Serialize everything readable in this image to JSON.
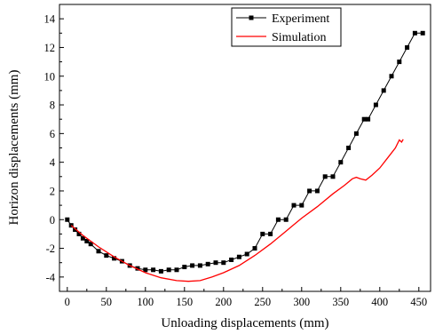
{
  "chart_data": {
    "type": "line",
    "title": "",
    "xlabel": "Unloading displacements (mm)",
    "ylabel": "Horizon displacements (mm)",
    "xlim": [
      -10,
      465
    ],
    "ylim": [
      -5,
      15
    ],
    "xticks": [
      0,
      50,
      100,
      150,
      200,
      250,
      300,
      350,
      400,
      450
    ],
    "yticks": [
      -4,
      -2,
      0,
      2,
      4,
      6,
      8,
      10,
      12,
      14
    ],
    "grid": false,
    "legend_position": "top-center",
    "series": [
      {
        "name": "Experiment",
        "color": "#000000",
        "marker": "square",
        "points": [
          [
            0,
            0.0
          ],
          [
            5,
            -0.4
          ],
          [
            10,
            -0.7
          ],
          [
            15,
            -1.0
          ],
          [
            20,
            -1.3
          ],
          [
            25,
            -1.5
          ],
          [
            30,
            -1.7
          ],
          [
            40,
            -2.2
          ],
          [
            50,
            -2.5
          ],
          [
            60,
            -2.7
          ],
          [
            70,
            -2.9
          ],
          [
            80,
            -3.2
          ],
          [
            90,
            -3.4
          ],
          [
            100,
            -3.5
          ],
          [
            110,
            -3.5
          ],
          [
            120,
            -3.6
          ],
          [
            130,
            -3.5
          ],
          [
            140,
            -3.5
          ],
          [
            150,
            -3.3
          ],
          [
            160,
            -3.2
          ],
          [
            170,
            -3.2
          ],
          [
            180,
            -3.1
          ],
          [
            190,
            -3.0
          ],
          [
            200,
            -3.0
          ],
          [
            210,
            -2.8
          ],
          [
            220,
            -2.6
          ],
          [
            230,
            -2.4
          ],
          [
            240,
            -2.0
          ],
          [
            250,
            -1.0
          ],
          [
            260,
            -1.0
          ],
          [
            270,
            0.0
          ],
          [
            280,
            0.0
          ],
          [
            290,
            1.0
          ],
          [
            300,
            1.0
          ],
          [
            310,
            2.0
          ],
          [
            320,
            2.0
          ],
          [
            330,
            3.0
          ],
          [
            340,
            3.0
          ],
          [
            350,
            4.0
          ],
          [
            360,
            5.0
          ],
          [
            370,
            6.0
          ],
          [
            380,
            7.0
          ],
          [
            385,
            7.0
          ],
          [
            395,
            8.0
          ],
          [
            405,
            9.0
          ],
          [
            415,
            10.0
          ],
          [
            425,
            11.0
          ],
          [
            435,
            12.0
          ],
          [
            445,
            13.0
          ],
          [
            455,
            13.0
          ]
        ]
      },
      {
        "name": "Simulation",
        "color": "#ff0000",
        "marker": "none",
        "points": [
          [
            5,
            -0.4
          ],
          [
            20,
            -1.1
          ],
          [
            40,
            -1.9
          ],
          [
            60,
            -2.6
          ],
          [
            80,
            -3.2
          ],
          [
            100,
            -3.7
          ],
          [
            120,
            -4.05
          ],
          [
            140,
            -4.25
          ],
          [
            155,
            -4.3
          ],
          [
            170,
            -4.25
          ],
          [
            185,
            -4.0
          ],
          [
            200,
            -3.7
          ],
          [
            220,
            -3.2
          ],
          [
            240,
            -2.5
          ],
          [
            260,
            -1.7
          ],
          [
            280,
            -0.8
          ],
          [
            300,
            0.1
          ],
          [
            320,
            0.9
          ],
          [
            340,
            1.8
          ],
          [
            355,
            2.4
          ],
          [
            365,
            2.85
          ],
          [
            370,
            2.95
          ],
          [
            375,
            2.85
          ],
          [
            382,
            2.75
          ],
          [
            390,
            3.1
          ],
          [
            400,
            3.6
          ],
          [
            410,
            4.3
          ],
          [
            420,
            5.0
          ],
          [
            425,
            5.55
          ],
          [
            428,
            5.4
          ],
          [
            430,
            5.6
          ]
        ]
      }
    ]
  }
}
